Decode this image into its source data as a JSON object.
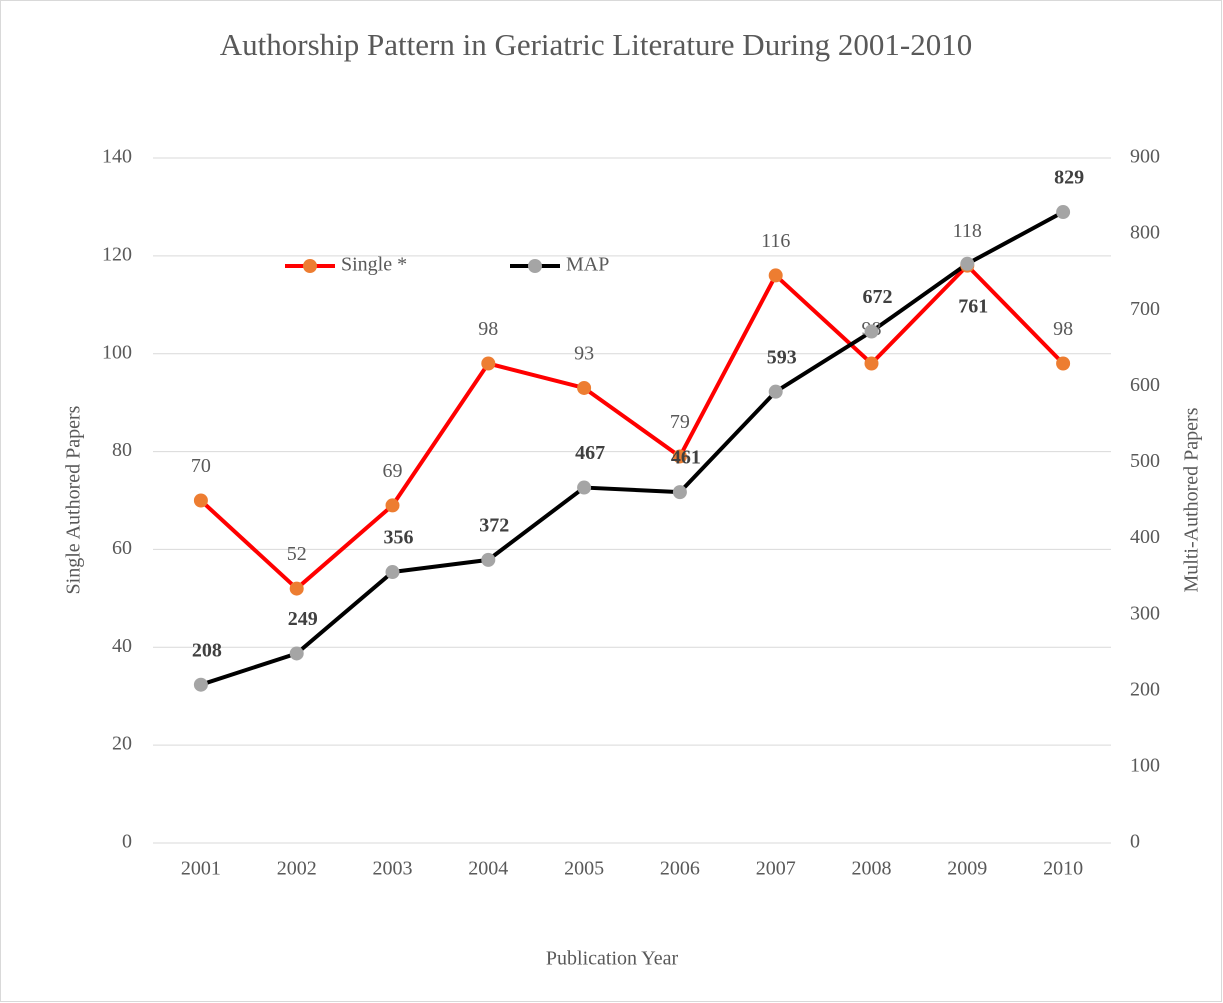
{
  "chart_data": {
    "type": "line",
    "title": "Authorship Pattern in Geriatric Literature During 2001-2010",
    "xlabel": "Publication Year",
    "ylabel": "Single Authored Papers",
    "y2label": "Multi-Authored Papers",
    "categories": [
      "2001",
      "2002",
      "2003",
      "2004",
      "2005",
      "2006",
      "2007",
      "2008",
      "2009",
      "2010"
    ],
    "series": [
      {
        "name": "Single *",
        "color": "#ff0000",
        "marker_color": "#ed7d31",
        "values": [
          70,
          52,
          69,
          98,
          93,
          79,
          116,
          98,
          118,
          98
        ]
      },
      {
        "name": "MAP",
        "color": "#000000",
        "marker_color": "#a5a5a5",
        "axis": "y2",
        "values": [
          208,
          249,
          356,
          372,
          467,
          461,
          593,
          672,
          761,
          829
        ]
      }
    ],
    "ylim": [
      0,
      140
    ],
    "yticks": [
      0,
      20,
      40,
      60,
      80,
      100,
      120,
      140
    ],
    "y2lim": [
      0,
      900
    ],
    "y2ticks": [
      0,
      100,
      200,
      300,
      400,
      500,
      600,
      700,
      800,
      900
    ],
    "grid": true,
    "legend": "top"
  }
}
